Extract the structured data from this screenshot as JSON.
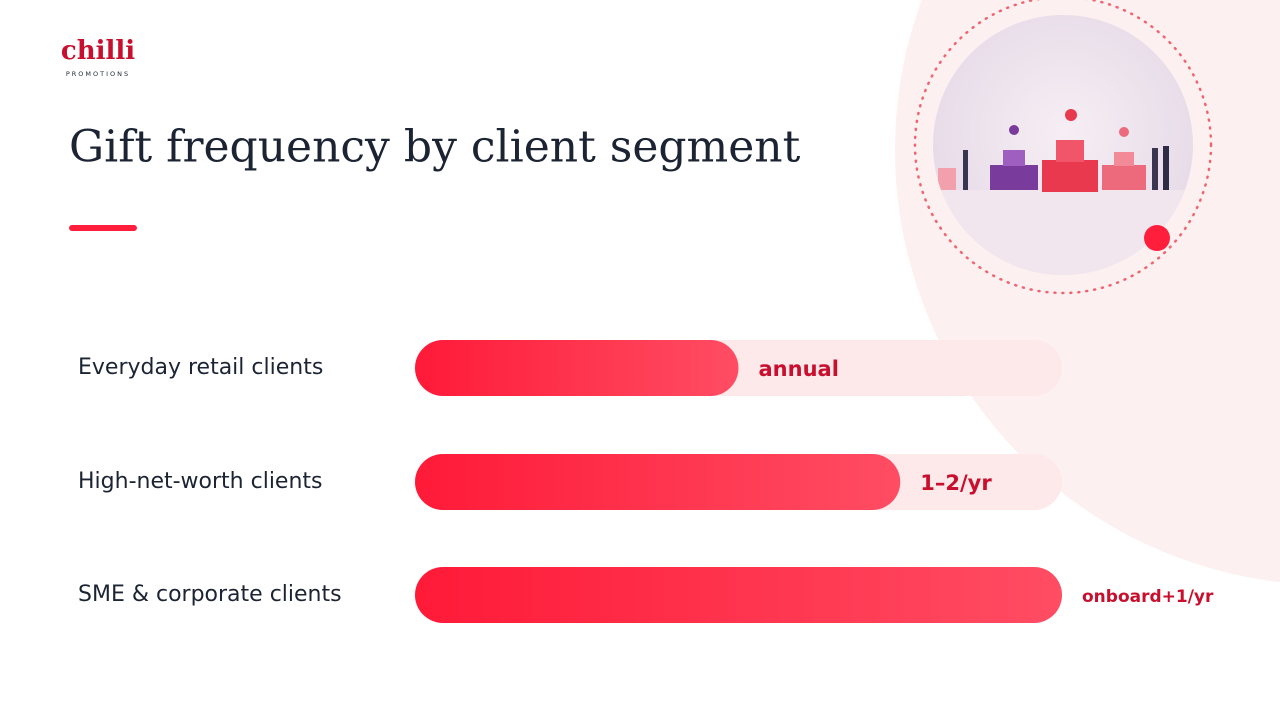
{
  "logo": {
    "name": "chilli",
    "tagline": "PROMOTIONS"
  },
  "chart_data": {
    "type": "hbar",
    "title": "Gift frequency by client segment",
    "categories": [
      "Everyday retail clients",
      "High-net-worth clients",
      "SME & corporate clients"
    ],
    "values": [
      1,
      1.5,
      2
    ],
    "value_labels": [
      "annual",
      "1–2/yr",
      "onboard+1/yr"
    ],
    "xlim": [
      0,
      2
    ],
    "color": "#ff1f3d"
  }
}
